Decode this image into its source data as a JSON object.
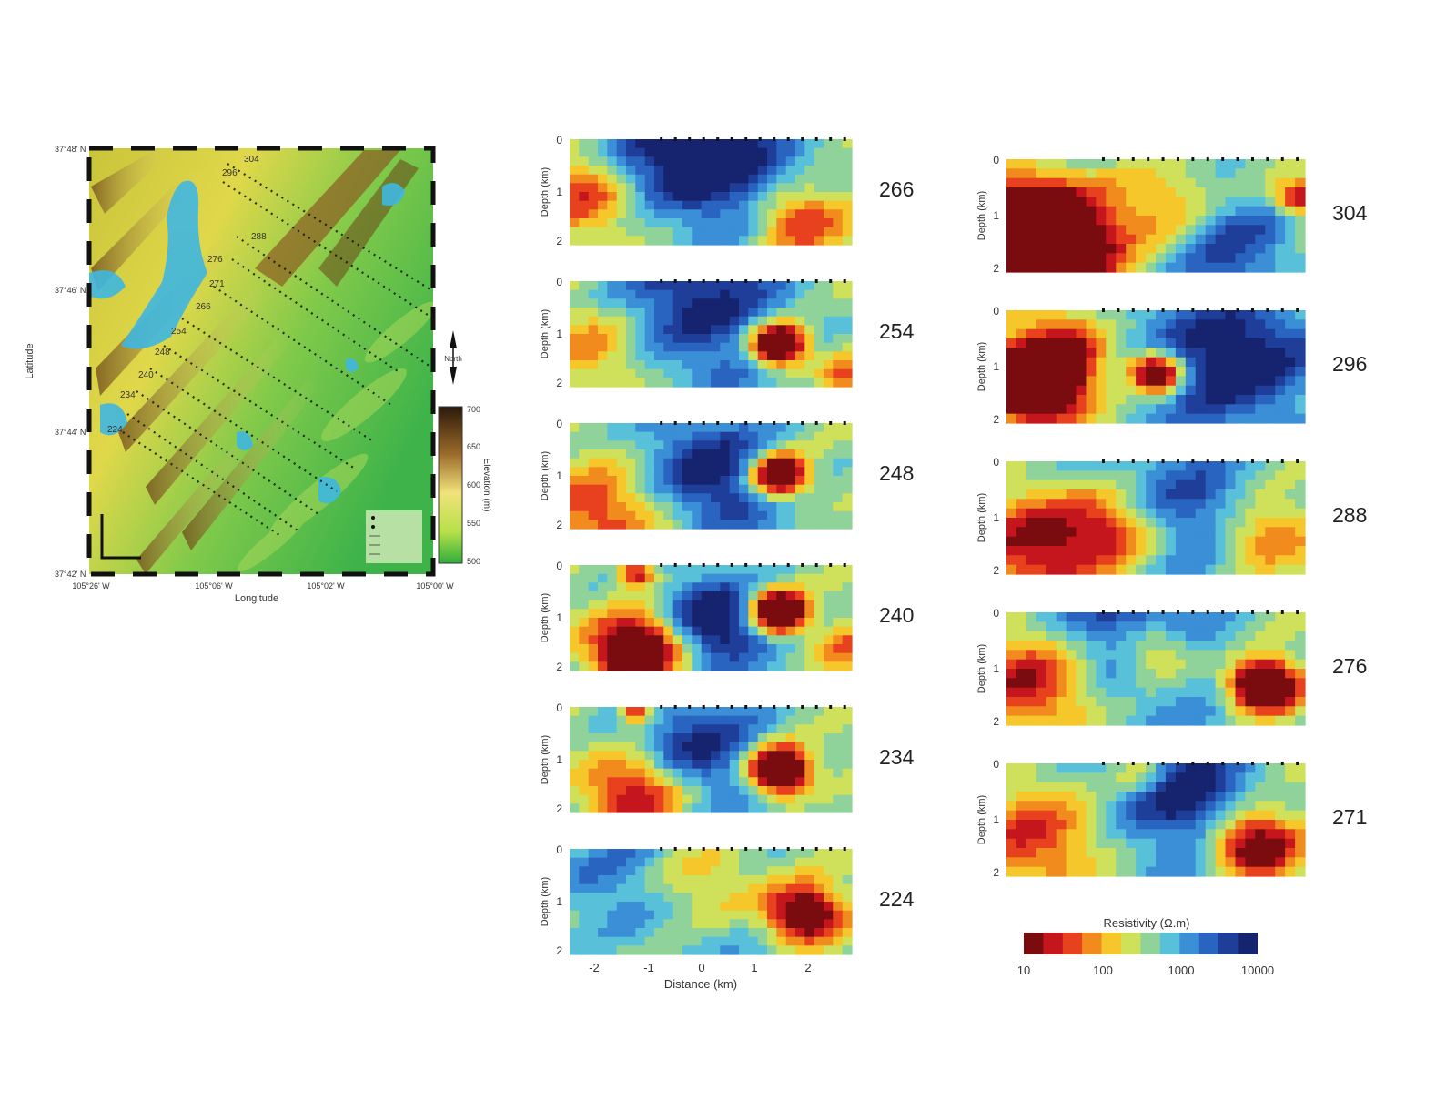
{
  "map": {
    "ylabel": "Latitude",
    "xlabel": "Longitude",
    "lat_ticks": [
      "37°48' N",
      "37°46' N",
      "37°44' N",
      "37°42' N"
    ],
    "lon_ticks": [
      "105°26' W",
      "105°06' W",
      "105°02' W",
      "105°00' W"
    ],
    "station_labels": [
      "304",
      "296",
      "288",
      "276",
      "271",
      "266",
      "254",
      "248",
      "240",
      "234",
      "224"
    ],
    "north_label": "North",
    "elevation_label": "Elevation (m)",
    "elevation_ticks": [
      "700",
      "650",
      "600",
      "550",
      "500"
    ],
    "colors": {
      "low": "#2fae3a",
      "mid": "#e6e23c",
      "high": "#3b2410",
      "water": "#3fb7e0"
    }
  },
  "profiles": {
    "depth_label": "Depth (km)",
    "depth_ticks": [
      "0",
      "1",
      "2"
    ],
    "distance_label": "Distance (km)",
    "distance_ticks": [
      "-2",
      "-1",
      "0",
      "1",
      "2"
    ],
    "left_column": [
      {
        "line": "266"
      },
      {
        "line": "254"
      },
      {
        "line": "248"
      },
      {
        "line": "240"
      },
      {
        "line": "234"
      },
      {
        "line": "224"
      }
    ],
    "right_column": [
      {
        "line": "304"
      },
      {
        "line": "296"
      },
      {
        "line": "288"
      },
      {
        "line": "276"
      },
      {
        "line": "271"
      }
    ]
  },
  "resistivity_scale": {
    "title": "Resistivity (Ω.m)",
    "ticks": [
      "10",
      "100",
      "1000",
      "10000"
    ],
    "colors": [
      "#7a0c10",
      "#c4161c",
      "#e8411e",
      "#f28b1d",
      "#f5c72a",
      "#cfe05a",
      "#8fd39a",
      "#58c0d9",
      "#3b8fd6",
      "#2a64c1",
      "#1f3e9a",
      "#16236e"
    ]
  }
}
